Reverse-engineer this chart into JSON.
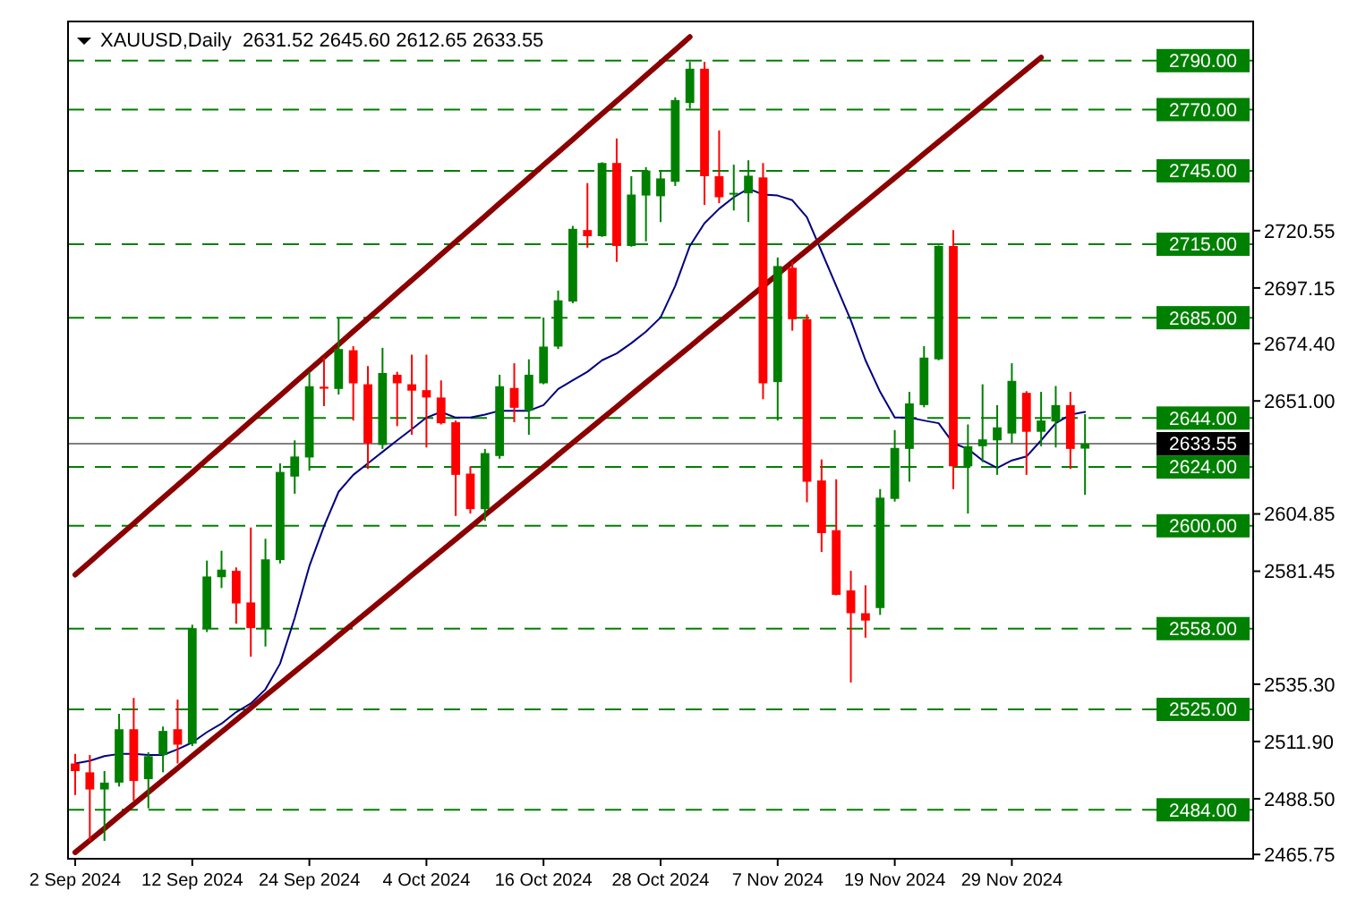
{
  "chart_data": {
    "type": "candlestick",
    "title": "XAUUSD,Daily  2631.52 2645.60 2612.65 2633.55",
    "categories": [
      "2 Sep 2024",
      null,
      null,
      null,
      null,
      null,
      null,
      null,
      "12 Sep 2024",
      null,
      null,
      null,
      null,
      null,
      null,
      null,
      "24 Sep 2024",
      null,
      null,
      null,
      null,
      null,
      null,
      null,
      "4 Oct 2024",
      null,
      null,
      null,
      null,
      null,
      null,
      null,
      "16 Oct 2024",
      null,
      null,
      null,
      null,
      null,
      null,
      null,
      "28 Oct 2024",
      null,
      null,
      null,
      null,
      null,
      null,
      null,
      "7 Nov 2024",
      null,
      null,
      null,
      null,
      null,
      null,
      null,
      "19 Nov 2024",
      null,
      null,
      null,
      null,
      null,
      null,
      null,
      "29 Nov 2024",
      null,
      null,
      null,
      null,
      null
    ],
    "ohlc": [
      [
        2502.9,
        2506.8,
        2490.0,
        2499.8
      ],
      [
        2499.3,
        2506.4,
        2471.3,
        2492.3
      ],
      [
        2492.3,
        2499.8,
        2471.3,
        2495.1
      ],
      [
        2495.1,
        2523.2,
        2493.5,
        2516.9
      ],
      [
        2516.9,
        2529.7,
        2487.7,
        2495.8
      ],
      [
        2496.5,
        2507.5,
        2484.6,
        2505.9
      ],
      [
        2506.4,
        2518.0,
        2499.3,
        2516.2
      ],
      [
        2516.9,
        2529.0,
        2502.9,
        2510.6
      ],
      [
        2511.0,
        2559.6,
        2510.0,
        2558.2
      ],
      [
        2558.0,
        2585.8,
        2556.6,
        2579.3
      ],
      [
        2579.0,
        2589.8,
        2574.6,
        2582.1
      ],
      [
        2581.6,
        2583.0,
        2560.0,
        2568.3
      ],
      [
        2568.7,
        2599.3,
        2546.5,
        2558.2
      ],
      [
        2558.2,
        2594.7,
        2550.7,
        2586.3
      ],
      [
        2586.0,
        2625.5,
        2584.6,
        2622.0
      ],
      [
        2620.1,
        2634.9,
        2613.1,
        2628.3
      ],
      [
        2627.9,
        2662.9,
        2622.5,
        2657.0
      ],
      [
        2656.8,
        2668.7,
        2648.9,
        2656.0
      ],
      [
        2655.9,
        2685.1,
        2653.6,
        2672.2
      ],
      [
        2671.7,
        2673.4,
        2643.0,
        2658.2
      ],
      [
        2657.8,
        2665.2,
        2623.2,
        2633.7
      ],
      [
        2633.0,
        2672.7,
        2631.4,
        2662.4
      ],
      [
        2661.7,
        2662.9,
        2640.7,
        2658.2
      ],
      [
        2657.8,
        2669.9,
        2637.2,
        2655.2
      ],
      [
        2655.4,
        2669.9,
        2632.0,
        2652.4
      ],
      [
        2652.4,
        2659.4,
        2641.4,
        2641.9
      ],
      [
        2642.3,
        2643.0,
        2604.0,
        2620.8
      ],
      [
        2621.3,
        2624.3,
        2605.0,
        2606.8
      ],
      [
        2606.8,
        2631.4,
        2602.0,
        2629.7
      ],
      [
        2628.5,
        2661.7,
        2627.4,
        2657.0
      ],
      [
        2656.3,
        2666.4,
        2642.3,
        2648.2
      ],
      [
        2647.0,
        2668.0,
        2637.2,
        2661.7
      ],
      [
        2658.2,
        2685.1,
        2657.8,
        2673.2
      ],
      [
        2673.2,
        2696.1,
        2672.2,
        2692.1
      ],
      [
        2691.6,
        2722.5,
        2690.9,
        2721.3
      ],
      [
        2720.8,
        2740.0,
        2713.6,
        2718.3
      ],
      [
        2718.3,
        2748.5,
        2718.0,
        2748.2
      ],
      [
        2748.2,
        2758.2,
        2707.8,
        2714.3
      ],
      [
        2714.3,
        2742.8,
        2714.0,
        2735.3
      ],
      [
        2734.9,
        2746.5,
        2716.2,
        2745.1
      ],
      [
        2734.6,
        2745.1,
        2724.1,
        2741.9
      ],
      [
        2740.5,
        2775.0,
        2738.8,
        2773.9
      ],
      [
        2772.7,
        2789.5,
        2770.4,
        2786.7
      ],
      [
        2786.7,
        2789.5,
        2731.1,
        2742.8
      ],
      [
        2742.8,
        2761.5,
        2731.8,
        2734.2
      ],
      [
        2735.5,
        2747.5,
        2728.8,
        2736.0
      ],
      [
        2735.8,
        2749.3,
        2724.1,
        2743.0
      ],
      [
        2742.3,
        2748.2,
        2651.7,
        2658.2
      ],
      [
        2658.7,
        2709.6,
        2643.0,
        2706.1
      ],
      [
        2705.4,
        2707.8,
        2679.7,
        2684.4
      ],
      [
        2684.4,
        2686.3,
        2609.6,
        2618.0
      ],
      [
        2618.5,
        2627.1,
        2589.3,
        2597.0
      ],
      [
        2598.2,
        2619.0,
        2571.6,
        2571.8
      ],
      [
        2573.6,
        2581.6,
        2536.0,
        2564.3
      ],
      [
        2564.3,
        2575.7,
        2554.3,
        2561.3
      ],
      [
        2566.4,
        2615.0,
        2563.6,
        2611.5
      ],
      [
        2611.0,
        2639.1,
        2609.9,
        2631.8
      ],
      [
        2631.4,
        2654.7,
        2618.0,
        2650.0
      ],
      [
        2649.3,
        2673.4,
        2648.4,
        2668.7
      ],
      [
        2668.0,
        2714.5,
        2667.6,
        2714.3
      ],
      [
        2714.3,
        2720.8,
        2615.0,
        2624.3
      ],
      [
        2624.3,
        2641.4,
        2605.0,
        2632.5
      ],
      [
        2632.5,
        2657.8,
        2626.0,
        2635.3
      ],
      [
        2634.9,
        2649.3,
        2620.8,
        2640.2
      ],
      [
        2637.7,
        2666.4,
        2633.7,
        2659.2
      ],
      [
        2654.3,
        2655.0,
        2620.8,
        2638.4
      ],
      [
        2638.4,
        2654.7,
        2632.5,
        2643.0
      ],
      [
        2642.6,
        2657.1,
        2632.0,
        2649.3
      ],
      [
        2649.3,
        2654.7,
        2623.2,
        2631.4
      ],
      [
        2631.52,
        2645.6,
        2612.65,
        2633.55
      ]
    ],
    "colors": [
      "#ff0000",
      "#ff0000",
      "#008000",
      "#008000",
      "#ff0000",
      "#008000",
      "#008000",
      "#ff0000",
      "#008000",
      "#008000",
      "#008000",
      "#ff0000",
      "#ff0000",
      "#008000",
      "#008000",
      "#008000",
      "#008000",
      "#ff0000",
      "#008000",
      "#ff0000",
      "#ff0000",
      "#008000",
      "#ff0000",
      "#ff0000",
      "#ff0000",
      "#ff0000",
      "#ff0000",
      "#ff0000",
      "#008000",
      "#008000",
      "#ff0000",
      "#008000",
      "#008000",
      "#008000",
      "#008000",
      "#ff0000",
      "#008000",
      "#ff0000",
      "#008000",
      "#008000",
      "#008000",
      "#008000",
      "#008000",
      "#ff0000",
      "#ff0000",
      "#008000",
      "#008000",
      "#ff0000",
      "#008000",
      "#ff0000",
      "#ff0000",
      "#ff0000",
      "#ff0000",
      "#ff0000",
      "#ff0000",
      "#008000",
      "#008000",
      "#008000",
      "#008000",
      "#008000",
      "#ff0000",
      "#008000",
      "#008000",
      "#008000",
      "#008000",
      "#ff0000",
      "#008000",
      "#008000",
      "#ff0000",
      "#008000"
    ],
    "series": [
      {
        "type": "line",
        "color": "#000080",
        "values": [
          2502.9,
          2504.0,
          2505.9,
          2506.8,
          2506.8,
          2506.4,
          2506.4,
          2508.7,
          2511.5,
          2515.7,
          2519.2,
          2523.9,
          2527.4,
          2533.2,
          2543.7,
          2562.4,
          2583.5,
          2599.8,
          2613.9,
          2620.8,
          2625.5,
          2630.2,
          2634.9,
          2639.5,
          2644.2,
          2646.5,
          2644.2,
          2644.2,
          2645.4,
          2647.0,
          2647.0,
          2647.0,
          2649.3,
          2655.9,
          2659.4,
          2662.9,
          2667.6,
          2670.4,
          2674.6,
          2679.3,
          2685.1,
          2698.0,
          2714.3,
          2723.6,
          2729.5,
          2734.2,
          2737.7,
          2735.3,
          2734.9,
          2733.0,
          2726.0,
          2712.0,
          2698.0,
          2683.9,
          2667.6,
          2654.7,
          2644.2,
          2644.2,
          2643.0,
          2641.9,
          2633.7,
          2631.4,
          2626.7,
          2623.6,
          2626.7,
          2628.3,
          2634.9,
          2641.9,
          2645.4,
          2646.5
        ]
      },
      {
        "type": "line",
        "color": "#8b0000",
        "values": [
          2580.0,
          2585.2,
          2590.5,
          2595.7,
          2600.9,
          2606.2,
          2611.4,
          2616.6,
          2621.8,
          2627.1,
          2632.3,
          2637.5,
          2642.8,
          2648.0,
          2653.2,
          2658.5,
          2663.7,
          2668.9,
          2674.1,
          2679.4,
          2684.6,
          2689.8,
          2695.1,
          2700.3,
          2705.5,
          2710.8,
          2716.0,
          2721.2,
          2726.4,
          2731.7,
          2736.9,
          2742.1,
          2747.4,
          2752.6,
          2757.8,
          2763.1,
          2768.3,
          2773.5,
          2778.7,
          2784.0,
          2789.2,
          2794.4,
          2799.7,
          null,
          null,
          null,
          null,
          null,
          null,
          null,
          null,
          null,
          null,
          null,
          null,
          null,
          null,
          null,
          null,
          null,
          null,
          null,
          null,
          null,
          null,
          null,
          null,
          null,
          null,
          null
        ]
      },
      {
        "type": "line",
        "color": "#8b0000",
        "values": [
          2466.6,
          2471.5,
          2476.4,
          2481.4,
          2486.3,
          2491.2,
          2496.1,
          2501.0,
          2506.0,
          2510.9,
          2515.8,
          2520.7,
          2525.6,
          2530.6,
          2535.5,
          2540.4,
          2545.3,
          2550.2,
          2555.2,
          2560.1,
          2565.0,
          2569.9,
          2574.8,
          2579.8,
          2584.7,
          2589.6,
          2594.5,
          2599.4,
          2604.4,
          2609.3,
          2614.2,
          2619.1,
          2624.0,
          2629.0,
          2633.9,
          2638.8,
          2643.7,
          2648.6,
          2653.6,
          2658.5,
          2663.4,
          2668.3,
          2673.2,
          2678.2,
          2683.1,
          2688.0,
          2692.9,
          2697.8,
          2702.8,
          2707.7,
          2712.6,
          2717.5,
          2722.4,
          2727.4,
          2732.3,
          2737.2,
          2742.1,
          2747.0,
          2752.0,
          2756.9,
          2761.8,
          2766.7,
          2771.6,
          2776.6,
          2781.5,
          2786.4,
          2791.3,
          null,
          null,
          null
        ]
      }
    ],
    "ylim": [
      2464,
      2806
    ],
    "yticks": [
      {
        "value": 2720.55,
        "label": "2720.55"
      },
      {
        "value": 2697.15,
        "label": "2697.15"
      },
      {
        "value": 2674.4,
        "label": "2674.40"
      },
      {
        "value": 2651.0,
        "label": "2651.00"
      },
      {
        "value": 2604.85,
        "label": "2604.85"
      },
      {
        "value": 2581.45,
        "label": "2581.45"
      },
      {
        "value": 2535.3,
        "label": "2535.30"
      },
      {
        "value": 2511.9,
        "label": "2511.90"
      },
      {
        "value": 2488.5,
        "label": "2488.50"
      },
      {
        "value": 2465.75,
        "label": "2465.75"
      }
    ],
    "ref_lines": [
      {
        "axis": "y",
        "value": 2790,
        "label": "2790.00",
        "color": "#008000",
        "line_style": "dashed"
      },
      {
        "axis": "y",
        "value": 2770,
        "label": "2770.00",
        "color": "#008000",
        "line_style": "dashed"
      },
      {
        "axis": "y",
        "value": 2745,
        "label": "2745.00",
        "color": "#008000",
        "line_style": "dashed"
      },
      {
        "axis": "y",
        "value": 2715,
        "label": "2715.00",
        "color": "#008000",
        "line_style": "dashed"
      },
      {
        "axis": "y",
        "value": 2685,
        "label": "2685.00",
        "color": "#008000",
        "line_style": "dashed"
      },
      {
        "axis": "y",
        "value": 2644,
        "label": "2644.00",
        "color": "#008000",
        "line_style": "dashed"
      },
      {
        "axis": "y",
        "value": 2633.55,
        "label": "2633.55",
        "color": "#808080",
        "line_style": "solid"
      },
      {
        "axis": "y",
        "value": 2624,
        "label": "2624.00",
        "color": "#008000",
        "line_style": "dashed"
      },
      {
        "axis": "y",
        "value": 2600,
        "label": "2600.00",
        "color": "#008000",
        "line_style": "dashed"
      },
      {
        "axis": "y",
        "value": 2558,
        "label": "2558.00",
        "color": "#008000",
        "line_style": "dashed"
      },
      {
        "axis": "y",
        "value": 2525,
        "label": "2525.00",
        "color": "#008000",
        "line_style": "dashed"
      },
      {
        "axis": "y",
        "value": 2484,
        "label": "2484.00",
        "color": "#008000",
        "line_style": "dashed"
      }
    ]
  }
}
